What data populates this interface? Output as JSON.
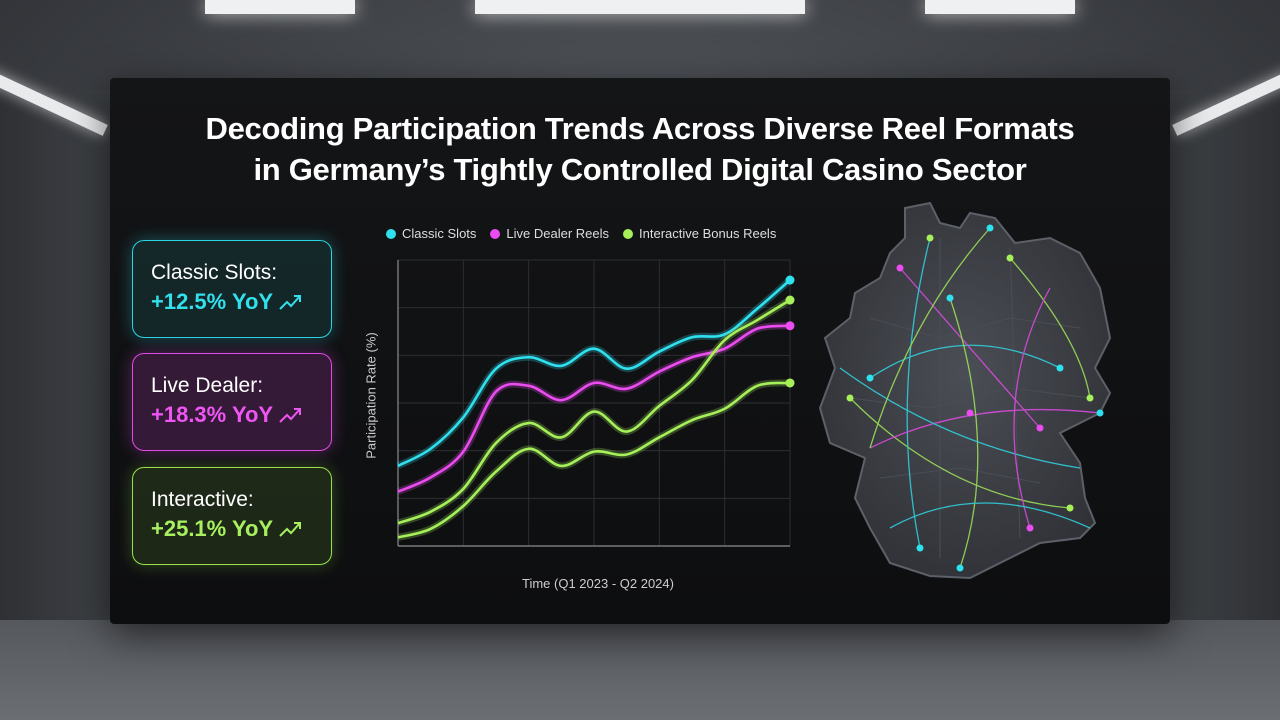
{
  "title_line1": "Decoding Participation Trends Across Diverse Reel Formats",
  "title_line2": "in Germany’s Tightly Controlled Digital Casino Sector",
  "cards": [
    {
      "label": "Classic Slots:",
      "value": "+12.5% YoY",
      "color": "#32e0ec",
      "icon": "trending-up-icon"
    },
    {
      "label": "Live Dealer:",
      "value": "+18.3% YoY",
      "color": "#ef55f2",
      "icon": "trending-up-icon"
    },
    {
      "label": "Interactive:",
      "value": "+25.1% YoY",
      "color": "#a8f060",
      "icon": "trending-up-icon"
    }
  ],
  "chart_data": {
    "type": "line",
    "title": "",
    "xlabel": "Time (Q1 2023 - Q2 2024)",
    "ylabel": "Participation Rate (%)",
    "x": [
      0,
      1,
      2,
      3,
      4,
      5,
      6,
      7,
      8,
      9,
      10,
      11,
      12
    ],
    "grid": true,
    "legend_position": "top",
    "series": [
      {
        "name": "Classic Slots",
        "color": "#2fe0ee",
        "values": [
          28,
          34,
          45,
          62,
          66,
          63,
          69,
          62,
          68,
          73,
          74,
          83,
          93
        ]
      },
      {
        "name": "Live Dealer Reels",
        "color": "#ea4cf0",
        "values": [
          19,
          24,
          33,
          54,
          56,
          51,
          57,
          55,
          61,
          66,
          69,
          76,
          77
        ]
      },
      {
        "name": "Interactive Bonus Reels",
        "color": "#a6f05a",
        "values": [
          8,
          12,
          20,
          36,
          43,
          38,
          47,
          40,
          49,
          58,
          72,
          79,
          86
        ]
      },
      {
        "name": "",
        "color": "#a6f05a",
        "values": [
          3,
          6,
          14,
          26,
          34,
          28,
          33,
          32,
          38,
          44,
          48,
          56,
          57
        ]
      }
    ],
    "ylim": [
      0,
      100
    ]
  },
  "map": {
    "region": "Germany",
    "icon": "germany-map-icon"
  }
}
